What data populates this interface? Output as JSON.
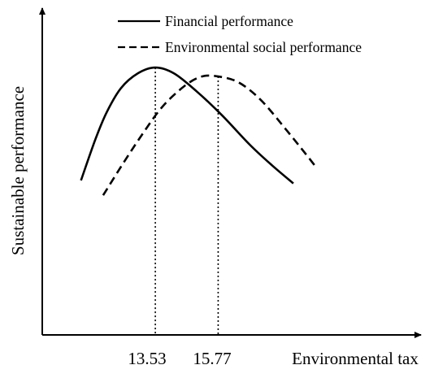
{
  "chart_data": {
    "type": "line",
    "title": "",
    "xlabel": "Environmental tax",
    "ylabel": "Sustainable performance",
    "x_ticks": [
      "13.53",
      "15.77"
    ],
    "grid": false,
    "axis_ticks_numeric": false,
    "legend_position": "top-center",
    "series": [
      {
        "name": "Financial performance",
        "style": "solid",
        "color": "#000000",
        "points": [
          {
            "x": 10.88,
            "y": 0.52
          },
          {
            "x": 11.4,
            "y": 0.66
          },
          {
            "x": 11.8,
            "y": 0.75
          },
          {
            "x": 12.3,
            "y": 0.83
          },
          {
            "x": 12.9,
            "y": 0.88
          },
          {
            "x": 13.53,
            "y": 0.9
          },
          {
            "x": 14.2,
            "y": 0.88
          },
          {
            "x": 15.0,
            "y": 0.82
          },
          {
            "x": 15.9,
            "y": 0.74
          },
          {
            "x": 16.9,
            "y": 0.64
          },
          {
            "x": 17.7,
            "y": 0.57
          },
          {
            "x": 18.45,
            "y": 0.51
          }
        ],
        "peak": {
          "x": 13.53,
          "y": 0.9
        }
      },
      {
        "name": "Environmental social performance",
        "style": "dashed",
        "color": "#000000",
        "points": [
          {
            "x": 11.67,
            "y": 0.47
          },
          {
            "x": 12.4,
            "y": 0.58
          },
          {
            "x": 13.1,
            "y": 0.68
          },
          {
            "x": 13.8,
            "y": 0.77
          },
          {
            "x": 14.6,
            "y": 0.84
          },
          {
            "x": 15.2,
            "y": 0.87
          },
          {
            "x": 15.77,
            "y": 0.87
          },
          {
            "x": 16.5,
            "y": 0.85
          },
          {
            "x": 17.3,
            "y": 0.79
          },
          {
            "x": 18.2,
            "y": 0.69
          },
          {
            "x": 18.8,
            "y": 0.62
          },
          {
            "x": 19.3,
            "y": 0.56
          }
        ],
        "peak": {
          "x": 15.77,
          "y": 0.87
        }
      }
    ],
    "vertical_reference_lines": [
      {
        "x": 13.53,
        "style": "dotted",
        "label": "13.53"
      },
      {
        "x": 15.77,
        "style": "dotted",
        "label": "15.77"
      }
    ],
    "xlim": [
      9.5,
      23.0
    ],
    "ylim": [
      0.0,
      1.1
    ]
  }
}
